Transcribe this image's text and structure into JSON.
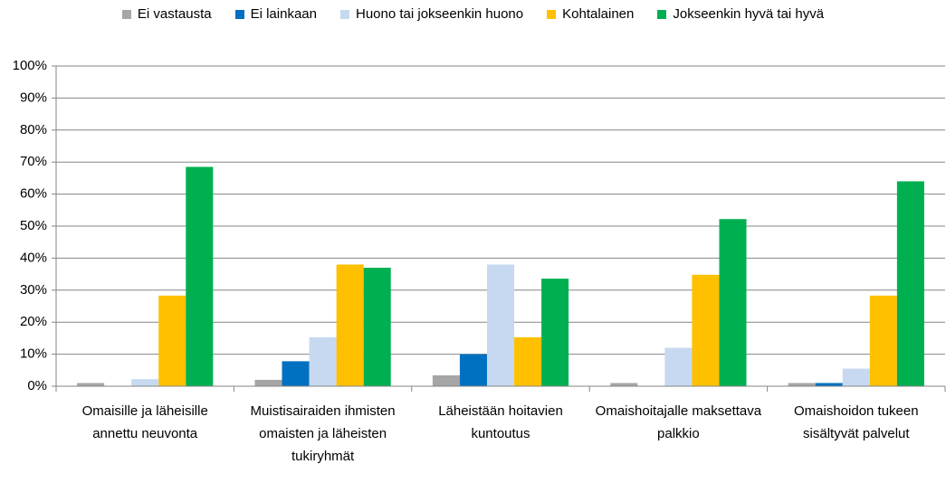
{
  "chart_data": {
    "type": "bar",
    "categories": [
      "Omaisille ja läheisille annettu neuvonta",
      "Muistisairaiden ihmisten omaisten ja läheisten tukiryhmät",
      "Läheistään hoitavien kuntoutus",
      "Omaishoitajalle maksettava palkkio",
      "Omaishoidon tukeen sisältyvät palvelut"
    ],
    "series": [
      {
        "name": "Ei vastausta",
        "color": "#a6a6a6",
        "values": [
          1,
          2,
          3.4,
          1,
          1
        ]
      },
      {
        "name": "Ei lainkaan",
        "color": "#0070c0",
        "values": [
          0,
          7.8,
          10,
          0,
          1
        ]
      },
      {
        "name": "Huono tai jokseenkin huono",
        "color": "#c6d9f1",
        "values": [
          2.2,
          15.3,
          38,
          12,
          5.5
        ]
      },
      {
        "name": "Kohtalainen",
        "color": "#ffc000",
        "values": [
          28.3,
          38,
          15.3,
          34.8,
          28.3
        ]
      },
      {
        "name": "Jokseenkin hyvä tai hyvä",
        "color": "#00b050",
        "values": [
          68.5,
          37,
          33.6,
          52.2,
          64
        ]
      }
    ],
    "ylim": [
      0,
      100
    ],
    "yticks": [
      {
        "value": 0,
        "label": "0%"
      },
      {
        "value": 10,
        "label": "10%"
      },
      {
        "value": 20,
        "label": "20%"
      },
      {
        "value": 30,
        "label": "30%"
      },
      {
        "value": 40,
        "label": "40%"
      },
      {
        "value": 50,
        "label": "50%"
      },
      {
        "value": 60,
        "label": "60%"
      },
      {
        "value": 70,
        "label": "70%"
      },
      {
        "value": 80,
        "label": "80%"
      },
      {
        "value": 90,
        "label": "90%"
      },
      {
        "value": 100,
        "label": "100%"
      }
    ],
    "grid": true,
    "legend": "top"
  }
}
